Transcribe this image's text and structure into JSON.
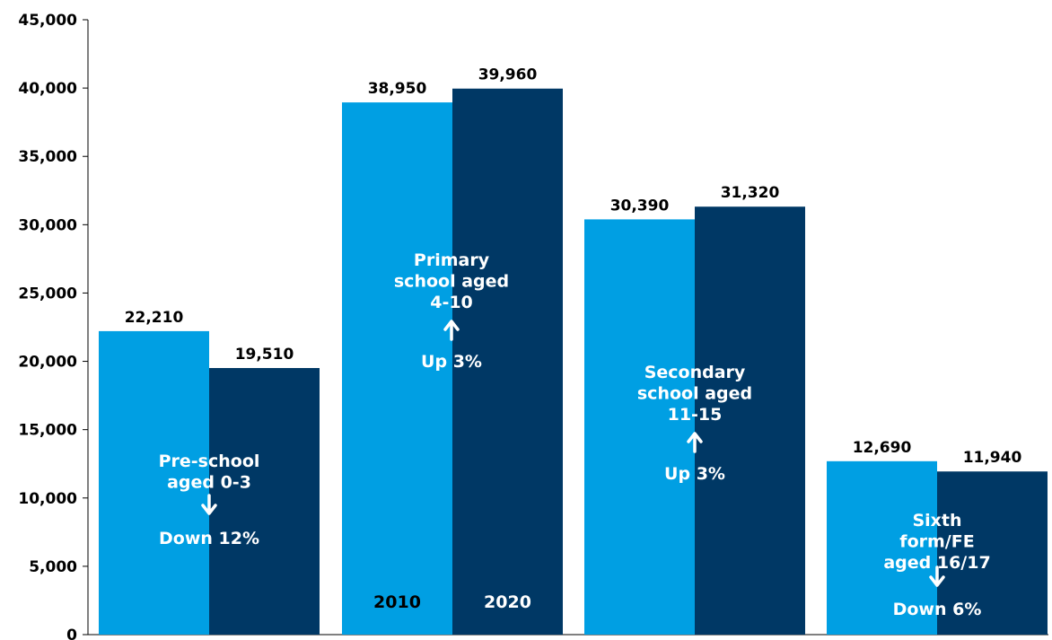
{
  "chart_data": {
    "type": "bar",
    "title": "",
    "xlabel": "",
    "ylabel": "",
    "ylim": [
      0,
      45000
    ],
    "yticks": [
      0,
      5000,
      10000,
      15000,
      20000,
      25000,
      30000,
      35000,
      40000,
      45000
    ],
    "ytick_labels": [
      "0",
      "5,000",
      "10,000",
      "15,000",
      "20,000",
      "25,000",
      "30,000",
      "35,000",
      "40,000",
      "45,000"
    ],
    "grid": false,
    "categories": [
      "Pre-school aged 0-3",
      "Primary school aged 4-10",
      "Secondary school aged 11-15",
      "Sixth form/FE aged 16/17"
    ],
    "series": [
      {
        "name": "2010",
        "color": "#009FE3",
        "values": [
          22210,
          38950,
          30390,
          12690
        ],
        "labels": [
          "22,210",
          "38,950",
          "30,390",
          "12,690"
        ]
      },
      {
        "name": "2020",
        "color": "#003865",
        "values": [
          19510,
          39960,
          31320,
          11940
        ],
        "labels": [
          "19,510",
          "39,960",
          "31,320",
          "11,940"
        ]
      }
    ],
    "legend": {
      "placement": "inside-primary-bars",
      "labels": [
        "2010",
        "2020"
      ]
    },
    "annotations": [
      {
        "category": 0,
        "lines": [
          "Pre-school",
          "aged 0-3"
        ],
        "arrow": "down",
        "change": "Down 12%"
      },
      {
        "category": 1,
        "lines": [
          "Primary",
          "school aged",
          "4-10"
        ],
        "arrow": "up",
        "change": "Up 3%"
      },
      {
        "category": 2,
        "lines": [
          "Secondary",
          "school aged",
          "11-15"
        ],
        "arrow": "up",
        "change": "Up 3%"
      },
      {
        "category": 3,
        "lines": [
          "Sixth",
          "form/FE",
          "aged 16/17"
        ],
        "arrow": "down",
        "change": "Down 6%"
      }
    ]
  }
}
